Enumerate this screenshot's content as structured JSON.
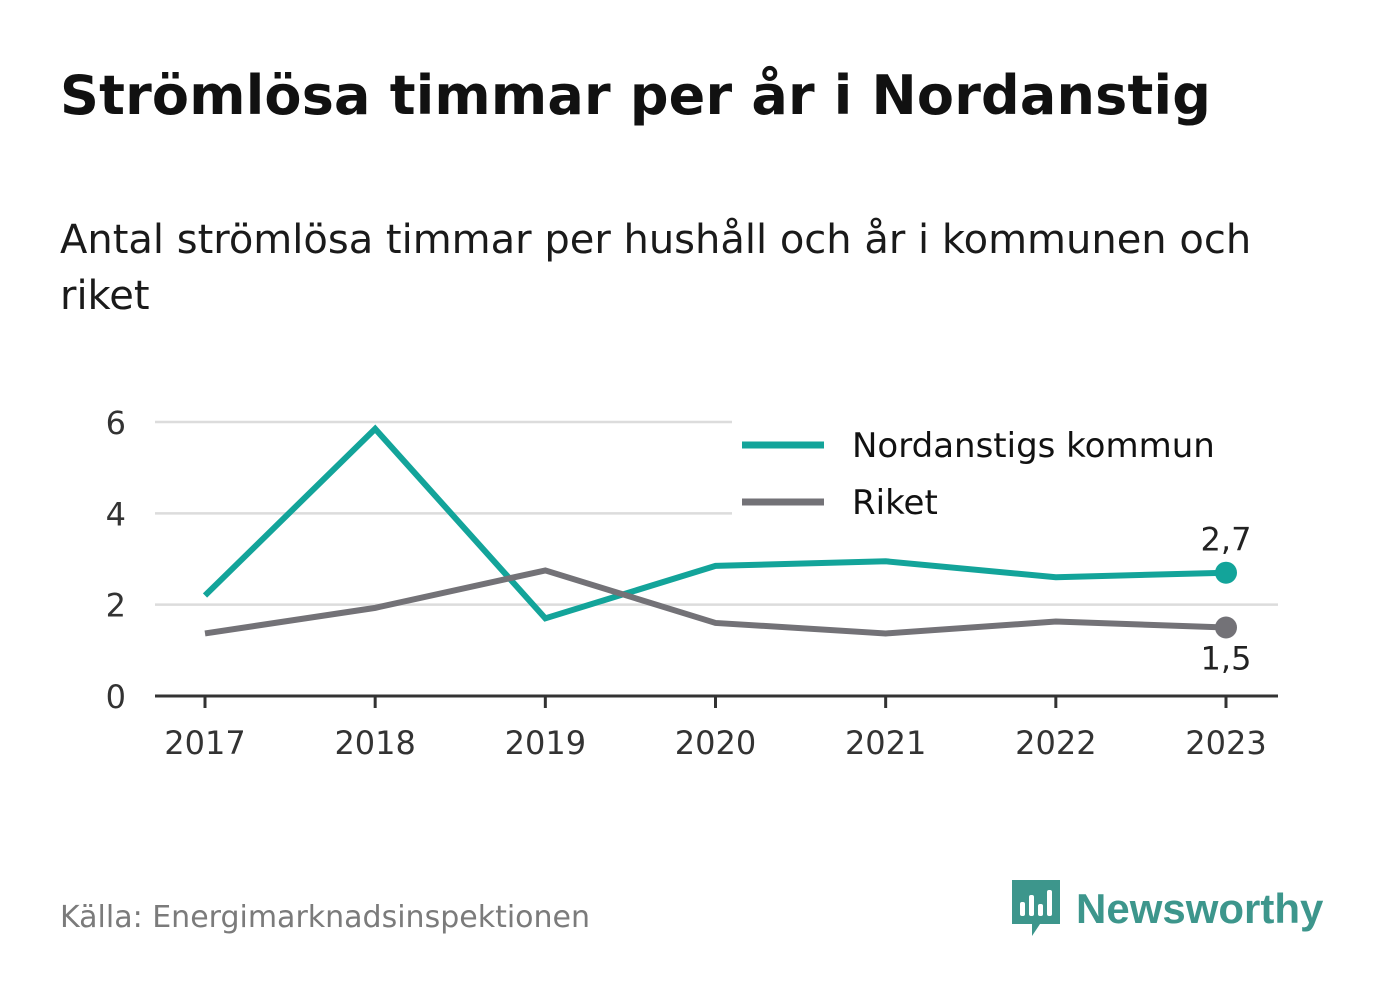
{
  "title": "Strömlösa timmar per år i Nordanstig",
  "subtitle": "Antal strömlösa timmar per hushåll och år i kommunen och riket",
  "source": "Källa: Energimarknadsinspektionen",
  "brand": {
    "name": "Newsworthy",
    "icon": "newsworthy-logo-icon",
    "color": "#3d968c"
  },
  "chart_data": {
    "type": "line",
    "x": [
      "2017",
      "2018",
      "2019",
      "2020",
      "2021",
      "2022",
      "2023"
    ],
    "ylim": [
      0,
      6
    ],
    "yticks": [
      "0",
      "2",
      "4",
      "6"
    ],
    "grid": true,
    "legend_position": "top-right",
    "series": [
      {
        "name": "Nordanstigs kommun",
        "color": "#13a49a",
        "values": [
          2.2,
          5.85,
          1.7,
          2.85,
          2.95,
          2.6,
          2.7
        ],
        "end_label": "2,7",
        "end_label_position": "above"
      },
      {
        "name": "Riket",
        "color": "#737277",
        "values": [
          1.37,
          1.93,
          2.75,
          1.6,
          1.37,
          1.63,
          1.5
        ],
        "end_label": "1,5",
        "end_label_position": "below"
      }
    ]
  }
}
